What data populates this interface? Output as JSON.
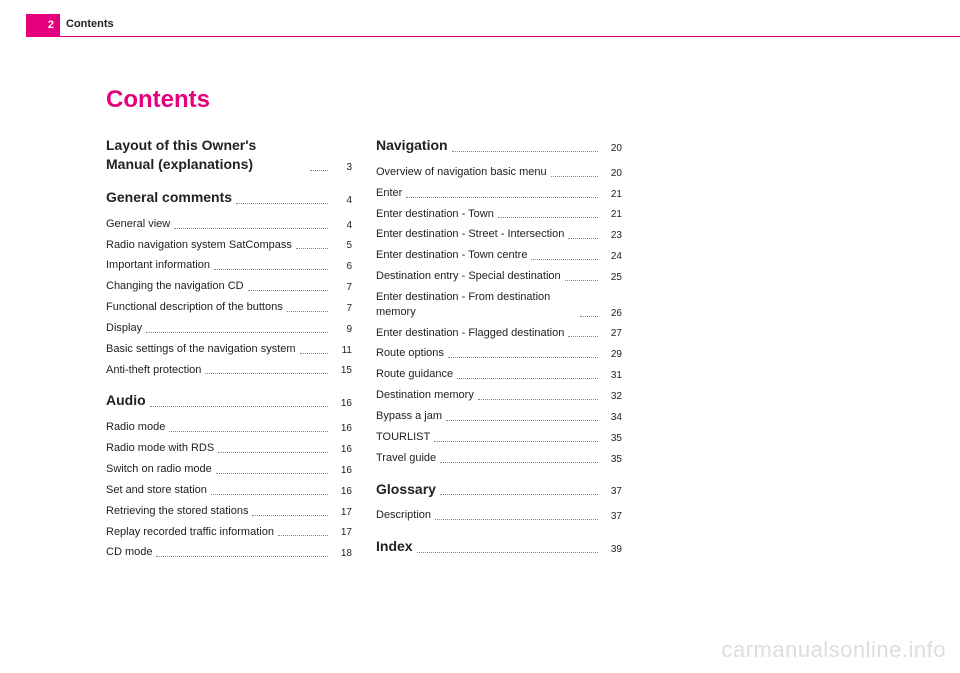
{
  "header": {
    "page_number": "2",
    "section_label": "Contents"
  },
  "title": "Contents",
  "columns": [
    [
      {
        "label": "Layout of this Owner's Manual (explanations)",
        "page": "3",
        "heading": true,
        "first": true
      },
      {
        "label": "General comments",
        "page": "4",
        "heading": true
      },
      {
        "label": "General view",
        "page": "4"
      },
      {
        "label": "Radio navigation system SatCompass",
        "page": "5"
      },
      {
        "label": "Important information",
        "page": "6"
      },
      {
        "label": "Changing the navigation CD",
        "page": "7"
      },
      {
        "label": "Functional description of the buttons",
        "page": "7"
      },
      {
        "label": "Display",
        "page": "9"
      },
      {
        "label": "Basic settings of the navigation system",
        "page": "11"
      },
      {
        "label": "Anti-theft protection",
        "page": "15"
      },
      {
        "label": "Audio",
        "page": "16",
        "heading": true
      },
      {
        "label": "Radio mode",
        "page": "16"
      },
      {
        "label": "Radio mode with RDS",
        "page": "16"
      },
      {
        "label": "Switch on radio mode",
        "page": "16"
      },
      {
        "label": "Set and store station",
        "page": "16"
      },
      {
        "label": "Retrieving the stored stations",
        "page": "17"
      },
      {
        "label": "Replay recorded traffic information",
        "page": "17"
      },
      {
        "label": "CD mode",
        "page": "18"
      }
    ],
    [
      {
        "label": "Navigation",
        "page": "20",
        "heading": true,
        "first": true
      },
      {
        "label": "Overview of navigation basic menu",
        "page": "20"
      },
      {
        "label": "Enter",
        "page": "21"
      },
      {
        "label": "Enter destination - Town",
        "page": "21"
      },
      {
        "label": "Enter destination - Street - Intersection",
        "page": "23"
      },
      {
        "label": "Enter destination - Town centre",
        "page": "24"
      },
      {
        "label": "Destination entry - Special destination",
        "page": "25"
      },
      {
        "label": "Enter destination - From destination memory",
        "page": "26"
      },
      {
        "label": "Enter destination - Flagged destination",
        "page": "27"
      },
      {
        "label": "Route options",
        "page": "29"
      },
      {
        "label": "Route guidance",
        "page": "31"
      },
      {
        "label": "Destination memory",
        "page": "32"
      },
      {
        "label": "Bypass a jam",
        "page": "34"
      },
      {
        "label": "TOURLIST",
        "page": "35"
      },
      {
        "label": "Travel guide",
        "page": "35"
      },
      {
        "label": "Glossary",
        "page": "37",
        "heading": true
      },
      {
        "label": "Description",
        "page": "37"
      },
      {
        "label": "Index",
        "page": "39",
        "heading": true
      }
    ]
  ],
  "watermark": "carmanualsonline.info",
  "colors": {
    "accent": "#e6007e",
    "text": "#222222",
    "watermark": "#dddddd"
  }
}
